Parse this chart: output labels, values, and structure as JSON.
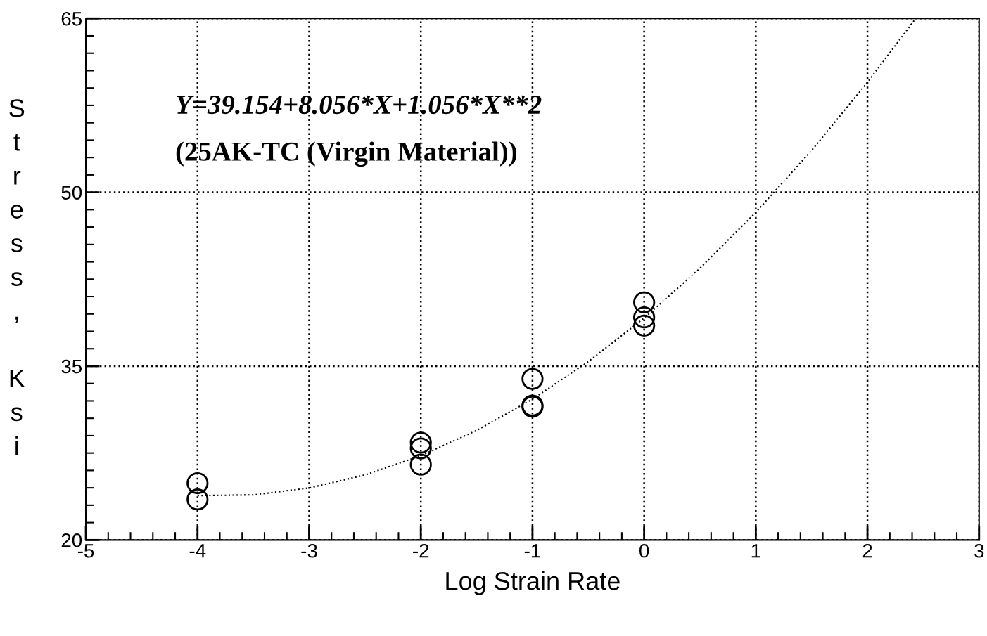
{
  "chart_data": {
    "type": "scatter",
    "xlabel": "Log Strain Rate",
    "ylabel": "Stress, Ksi",
    "annotations": [
      "Y=39.154+8.056*X+1.056*X**2",
      "(25AK-TC (Virgin Material))"
    ],
    "series": [
      {
        "color": "#000000",
        "marker": "circle",
        "x": [
          -4,
          -4,
          -2,
          -2,
          -2,
          -1,
          -1,
          -1,
          0,
          0,
          0
        ],
        "values": [
          24.9,
          23.5,
          28.4,
          27.9,
          26.5,
          33.9,
          31.6,
          31.5,
          40.5,
          39.2,
          38.5
        ]
      },
      {
        "type": "line",
        "color": "#000000",
        "line_style": "dotted",
        "marker": "none",
        "x": [
          -4,
          -3.5,
          -3,
          -2.5,
          -2,
          -1.5,
          -1,
          -0.5,
          0,
          0.5,
          1,
          1.5,
          2,
          2.43
        ],
        "values": [
          23.83,
          23.89,
          24.49,
          25.61,
          27.27,
          29.45,
          32.15,
          35.39,
          39.15,
          43.45,
          48.27,
          53.61,
          59.49,
          64.97
        ]
      }
    ],
    "xlim": [
      -5,
      3
    ],
    "xticks": [
      -5,
      -4,
      -3,
      -2,
      -1,
      0,
      1,
      2,
      3
    ],
    "ylim": [
      20,
      65
    ],
    "yticks": [
      20,
      35,
      50,
      65
    ],
    "grid": true,
    "legend": false
  }
}
